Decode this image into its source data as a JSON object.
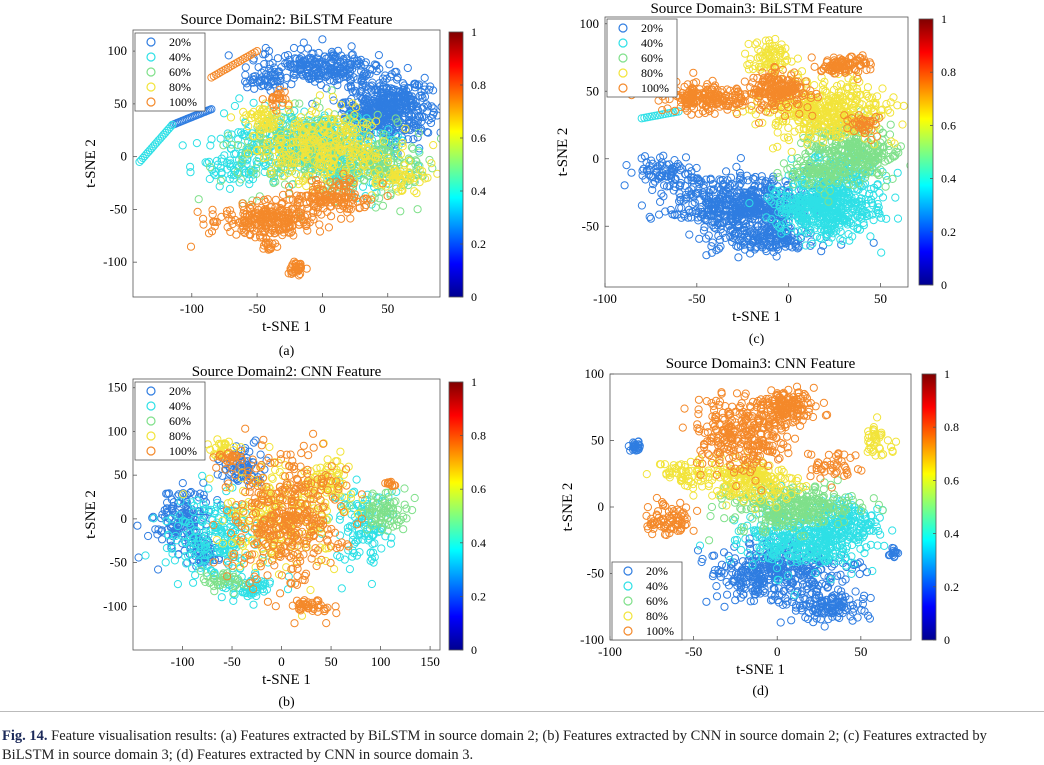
{
  "caption": {
    "label": "Fig. 14.",
    "text": "Feature visualisation results: (a) Features extracted by BiLSTM in source domain 2; (b) Features extracted by CNN in source domain 2; (c) Features extracted by BiLSTM in source domain 3; (d) Features extracted by CNN in source domain 3."
  },
  "chart_data": [
    {
      "type": "scatter",
      "sub_label": "(a)",
      "title": "Source Domain2: BiLSTM Feature",
      "xlabel": "t-SNE 1",
      "ylabel": "t-SNE 2",
      "xlim": [
        -145,
        90
      ],
      "ylim": [
        -133,
        120
      ],
      "xticks": [
        -100,
        -50,
        0,
        50
      ],
      "yticks": [
        -100,
        -50,
        0,
        50,
        100
      ],
      "colorbar": {
        "range": [
          0,
          1
        ],
        "ticks": [
          0,
          0.2,
          0.4,
          0.6,
          0.8,
          1
        ]
      },
      "legend": {
        "position": "top-left",
        "entries": [
          "20%",
          "40%",
          "60%",
          "80%",
          "100%"
        ]
      },
      "series": [
        {
          "name": "20%",
          "color": "#2f7de1",
          "clusters": [
            [
              50,
              45,
              30,
              25,
              500
            ],
            [
              0,
              85,
              45,
              15,
              250
            ],
            [
              -45,
              70,
              15,
              8,
              40
            ]
          ],
          "lines": [
            [
              -115,
              30,
              -85,
              45,
              25
            ]
          ]
        },
        {
          "name": "40%",
          "color": "#2ee0e6",
          "clusters": [
            [
              -20,
              15,
              50,
              25,
              250
            ],
            [
              20,
              0,
              40,
              30,
              220
            ],
            [
              -60,
              -10,
              30,
              15,
              80
            ]
          ],
          "lines": [
            [
              -140,
              -5,
              -115,
              30,
              20
            ]
          ]
        },
        {
          "name": "60%",
          "color": "#7fe08a",
          "clusters": [
            [
              -5,
              5,
              55,
              35,
              260
            ],
            [
              50,
              -10,
              30,
              25,
              120
            ]
          ],
          "lines": []
        },
        {
          "name": "80%",
          "color": "#f2e43a",
          "clusters": [
            [
              0,
              10,
              45,
              30,
              300
            ],
            [
              -45,
              35,
              15,
              12,
              50
            ],
            [
              60,
              -20,
              20,
              15,
              60
            ]
          ],
          "lines": []
        },
        {
          "name": "100%",
          "color": "#f4892a",
          "clusters": [
            [
              -40,
              -60,
              35,
              15,
              250
            ],
            [
              5,
              -40,
              30,
              15,
              150
            ],
            [
              -20,
              -105,
              6,
              6,
              30
            ],
            [
              -40,
              -85,
              5,
              5,
              15
            ],
            [
              -35,
              55,
              8,
              8,
              25
            ]
          ],
          "lines": [
            [
              -85,
              75,
              -50,
              100,
              20
            ]
          ]
        }
      ]
    },
    {
      "type": "scatter",
      "sub_label": "(b)",
      "title": "Source Domain2: CNN Feature",
      "xlabel": "t-SNE 1",
      "ylabel": "t-SNE 2",
      "xlim": [
        -150,
        160
      ],
      "ylim": [
        -150,
        160
      ],
      "xticks": [
        -100,
        -50,
        0,
        50,
        100,
        150
      ],
      "yticks": [
        -100,
        -50,
        0,
        50,
        100,
        150
      ],
      "colorbar": {
        "range": [
          0,
          1
        ],
        "ticks": [
          0,
          0.2,
          0.4,
          0.6,
          0.8,
          1
        ]
      },
      "legend": {
        "position": "top-left",
        "entries": [
          "20%",
          "40%",
          "60%",
          "80%",
          "100%"
        ]
      },
      "series": [
        {
          "name": "20%",
          "color": "#2f7de1",
          "clusters": [
            [
              -100,
              0,
              25,
              35,
              150
            ],
            [
              -40,
              60,
              20,
              20,
              80
            ],
            [
              -80,
              -40,
              20,
              15,
              60
            ]
          ],
          "lines": []
        },
        {
          "name": "40%",
          "color": "#2ee0e6",
          "clusters": [
            [
              -70,
              -20,
              40,
              40,
              200
            ],
            [
              80,
              -10,
              30,
              40,
              120
            ],
            [
              -30,
              -80,
              25,
              12,
              60
            ]
          ],
          "lines": []
        },
        {
          "name": "60%",
          "color": "#7fe08a",
          "clusters": [
            [
              100,
              10,
              25,
              20,
              80
            ],
            [
              -60,
              -70,
              20,
              10,
              40
            ]
          ],
          "lines": []
        },
        {
          "name": "80%",
          "color": "#f2e43a",
          "clusters": [
            [
              0,
              0,
              55,
              55,
              220
            ],
            [
              50,
              40,
              25,
              25,
              60
            ],
            [
              -60,
              80,
              15,
              10,
              30
            ]
          ],
          "lines": []
        },
        {
          "name": "100%",
          "color": "#f4892a",
          "clusters": [
            [
              5,
              0,
              50,
              70,
              400
            ],
            [
              30,
              -100,
              20,
              6,
              40
            ],
            [
              -55,
              70,
              12,
              8,
              25
            ],
            [
              110,
              40,
              8,
              5,
              12
            ]
          ],
          "lines": []
        }
      ]
    },
    {
      "type": "scatter",
      "sub_label": "(c)",
      "title": "Source Domain3: BiLSTM Feature",
      "xlabel": "t-SNE 1",
      "ylabel": "t-SNE 2",
      "xlim": [
        -100,
        65
      ],
      "ylim": [
        -95,
        105
      ],
      "xticks": [
        -100,
        -50,
        0,
        50
      ],
      "yticks": [
        -50,
        0,
        50,
        100
      ],
      "colorbar": {
        "range": [
          0,
          1
        ],
        "ticks": [
          0,
          0.2,
          0.4,
          0.6,
          0.8,
          1
        ]
      },
      "legend": {
        "position": "top-left",
        "entries": [
          "20%",
          "40%",
          "60%",
          "80%",
          "100%"
        ]
      },
      "series": [
        {
          "name": "20%",
          "color": "#2f7de1",
          "clusters": [
            [
              -25,
              -35,
              35,
              20,
              600
            ],
            [
              -70,
              -10,
              15,
              10,
              80
            ],
            [
              -10,
              -60,
              25,
              10,
              150
            ]
          ],
          "lines": []
        },
        {
          "name": "40%",
          "color": "#2ee0e6",
          "clusters": [
            [
              20,
              -35,
              25,
              20,
              500
            ],
            [
              30,
              -10,
              20,
              15,
              100
            ]
          ],
          "lines": [
            [
              -80,
              30,
              -60,
              35,
              15
            ]
          ]
        },
        {
          "name": "60%",
          "color": "#7fe08a",
          "clusters": [
            [
              35,
              5,
              20,
              20,
              300
            ],
            [
              15,
              -10,
              15,
              10,
              80
            ]
          ],
          "lines": []
        },
        {
          "name": "80%",
          "color": "#f2e43a",
          "clusters": [
            [
              20,
              35,
              30,
              20,
              400
            ],
            [
              -10,
              75,
              12,
              10,
              80
            ]
          ],
          "lines": []
        },
        {
          "name": "100%",
          "color": "#f4892a",
          "clusters": [
            [
              -45,
              45,
              20,
              10,
              200
            ],
            [
              -5,
              50,
              15,
              12,
              200
            ],
            [
              30,
              70,
              12,
              6,
              100
            ],
            [
              40,
              25,
              8,
              8,
              40
            ]
          ],
          "lines": []
        }
      ]
    },
    {
      "type": "scatter",
      "sub_label": "(d)",
      "title": "Source Domain3: CNN Feature",
      "xlabel": "t-SNE 1",
      "ylabel": "t-SNE 2",
      "xlim": [
        -100,
        80
      ],
      "ylim": [
        -100,
        100
      ],
      "xticks": [
        -100,
        -50,
        0,
        50
      ],
      "yticks": [
        -100,
        -50,
        0,
        50,
        100
      ],
      "colorbar": {
        "range": [
          0,
          1
        ],
        "ticks": [
          0,
          0.2,
          0.4,
          0.6,
          0.8,
          1
        ]
      },
      "legend": {
        "position": "bottom-left",
        "entries": [
          "20%",
          "40%",
          "60%",
          "80%",
          "100%"
        ]
      },
      "series": [
        {
          "name": "20%",
          "color": "#2f7de1",
          "clusters": [
            [
              0,
              -50,
              35,
              20,
              400
            ],
            [
              30,
              -75,
              20,
              10,
              120
            ],
            [
              -85,
              45,
              3,
              4,
              25
            ],
            [
              70,
              -35,
              3,
              4,
              15
            ]
          ],
          "lines": []
        },
        {
          "name": "40%",
          "color": "#2ee0e6",
          "clusters": [
            [
              15,
              -25,
              35,
              20,
              400
            ],
            [
              40,
              -10,
              20,
              15,
              120
            ]
          ],
          "lines": []
        },
        {
          "name": "60%",
          "color": "#7fe08a",
          "clusters": [
            [
              10,
              0,
              35,
              15,
              300
            ]
          ],
          "lines": []
        },
        {
          "name": "80%",
          "color": "#f2e43a",
          "clusters": [
            [
              -15,
              20,
              25,
              15,
              200
            ],
            [
              -55,
              25,
              15,
              8,
              60
            ],
            [
              60,
              50,
              8,
              12,
              40
            ]
          ],
          "lines": []
        },
        {
          "name": "100%",
          "color": "#f4892a",
          "clusters": [
            [
              -20,
              55,
              25,
              25,
              300
            ],
            [
              5,
              75,
              15,
              12,
              150
            ],
            [
              -65,
              -10,
              15,
              10,
              80
            ],
            [
              35,
              30,
              10,
              8,
              40
            ]
          ],
          "lines": []
        }
      ]
    }
  ]
}
